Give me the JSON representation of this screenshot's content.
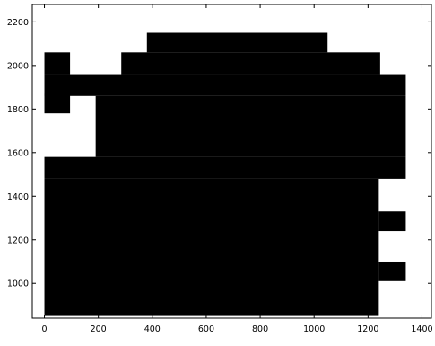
{
  "chart_data": {
    "type": "heatmap",
    "title": "",
    "xlabel": "",
    "ylabel": "",
    "xlim": [
      -45,
      1435
    ],
    "ylim": [
      840,
      2280
    ],
    "xticks": [
      0,
      200,
      400,
      600,
      800,
      1000,
      1200,
      1400
    ],
    "yticks": [
      1000,
      1200,
      1400,
      1600,
      1800,
      2000,
      2200
    ],
    "grid": false,
    "cell_color": "#000000",
    "background_color": "#ffffff",
    "filled_cells": [
      [
        0,
        850,
        1240,
        1480
      ],
      [
        0,
        1480,
        1340,
        1580
      ],
      [
        190,
        1580,
        1340,
        1860
      ],
      [
        0,
        1780,
        95,
        1870
      ],
      [
        0,
        1860,
        1340,
        1960
      ],
      [
        0,
        1960,
        95,
        2060
      ],
      [
        285,
        1960,
        1245,
        2060
      ],
      [
        380,
        2060,
        1050,
        2150
      ],
      [
        1240,
        1240,
        1340,
        1330
      ],
      [
        1240,
        1010,
        1340,
        1100
      ]
    ]
  }
}
